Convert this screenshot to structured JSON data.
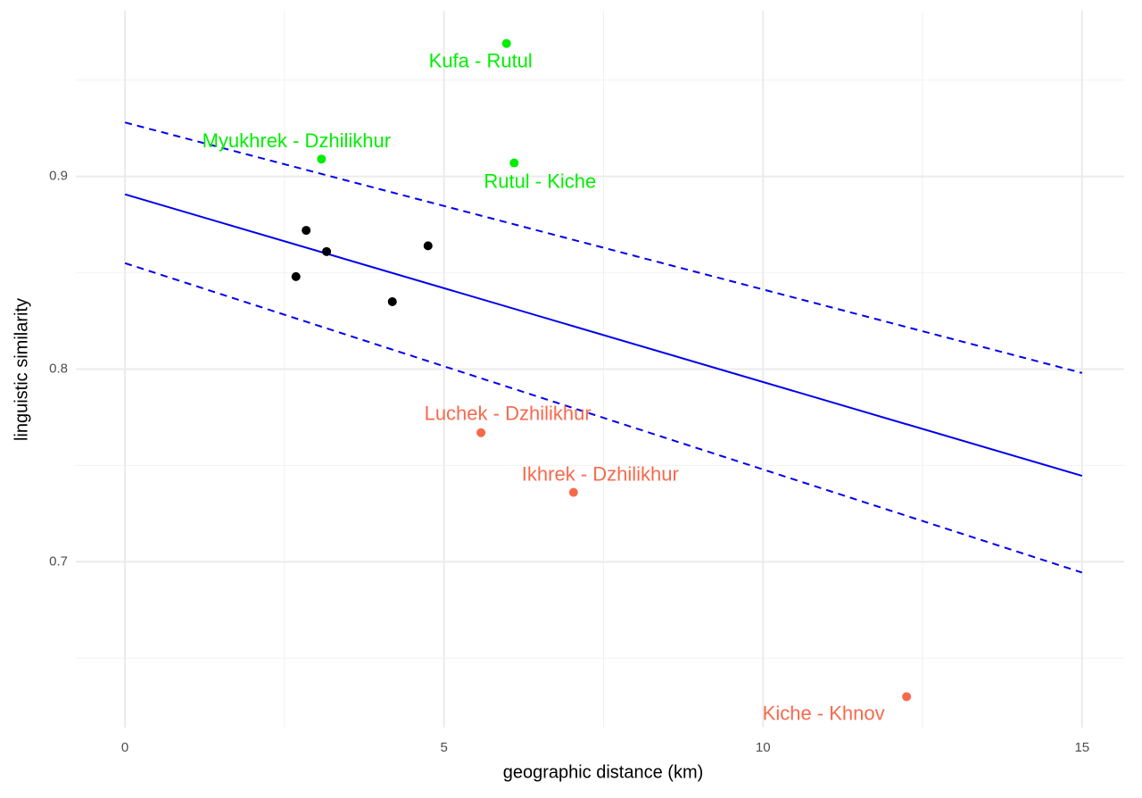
{
  "chart_data": {
    "type": "scatter",
    "xlabel": "geographic distance (km)",
    "ylabel": "linguistic similarity",
    "xlim": [
      -0.77,
      15.66
    ],
    "ylim": [
      0.614,
      0.986
    ],
    "xticks": [
      0,
      5,
      10,
      15
    ],
    "yticks": [
      0.7,
      0.8,
      0.9
    ],
    "x_minor_ticks": [
      2.5,
      7.5,
      12.5
    ],
    "y_minor_ticks": [
      0.65,
      0.75,
      0.85,
      0.95
    ],
    "grid": true,
    "x": [
      2.68,
      2.84,
      3.16,
      4.19,
      4.75,
      5.98,
      3.08,
      6.1,
      5.58,
      7.03,
      12.25
    ],
    "y": [
      0.848,
      0.872,
      0.861,
      0.835,
      0.864,
      0.969,
      0.909,
      0.907,
      0.767,
      0.736,
      0.63
    ],
    "labels": [
      null,
      null,
      null,
      null,
      null,
      "Kufa - Rutul",
      "Myukhrek - Dzhilikhur",
      "Rutul - Kiche",
      "Luchek - Dzhilikhur",
      "Ikhrek - Dzhilikhur",
      "Kiche - Khnov"
    ],
    "colors": [
      "#000000",
      "#000000",
      "#000000",
      "#000000",
      "#000000",
      "#00ee00",
      "#00ee00",
      "#00ee00",
      "#f8694c",
      "#f8694c",
      "#f8694c"
    ],
    "lines": [
      {
        "x": [
          0,
          15
        ],
        "y": [
          0.8907,
          0.7446
        ],
        "style": "solid",
        "color": "#0000ee"
      },
      {
        "x": [
          0,
          15
        ],
        "y": [
          0.928,
          0.798
        ],
        "style": "dashed",
        "color": "#0000ee"
      },
      {
        "x": [
          0,
          15
        ],
        "y": [
          0.855,
          0.6944
        ],
        "style": "dashed",
        "color": "#0000ee"
      }
    ]
  }
}
